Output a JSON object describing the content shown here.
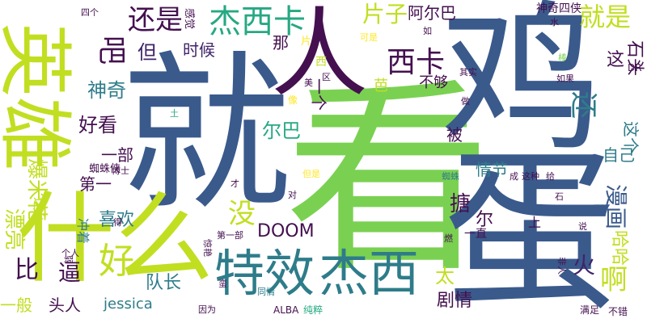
{
  "words": [
    {
      "id": "jiu",
      "text": "就"
    },
    {
      "id": "kan",
      "text": "看"
    },
    {
      "id": "ji",
      "text": "鸡"
    },
    {
      "id": "dan",
      "text": "蛋"
    },
    {
      "id": "yingxiong",
      "text": "英雄"
    },
    {
      "id": "shenme",
      "text": "什么"
    },
    {
      "id": "texiao",
      "text": "特效"
    },
    {
      "id": "jiexi",
      "text": "杰西"
    },
    {
      "id": "ren",
      "text": "人"
    },
    {
      "id": "jiexika",
      "text": "杰西卡"
    },
    {
      "id": "xika",
      "text": "西卡"
    },
    {
      "id": "haishi",
      "text": "还是"
    },
    {
      "id": "pianzi",
      "text": "片子"
    },
    {
      "id": "aerba",
      "text": "阿尔巴"
    },
    {
      "id": "jiushi",
      "text": "就是"
    },
    {
      "id": "ba",
      "text": "吧"
    },
    {
      "id": "shitou",
      "text": "石头"
    },
    {
      "id": "shenqisixia",
      "text": "神奇四侠"
    },
    {
      "id": "sige",
      "text": "四个"
    },
    {
      "id": "gan",
      "text": "感觉"
    },
    {
      "id": "na",
      "text": "那"
    },
    {
      "id": "shihou",
      "text": "时候"
    },
    {
      "id": "dan2",
      "text": "但"
    },
    {
      "id": "shenqi",
      "text": "神奇"
    },
    {
      "id": "yige",
      "text": "一个"
    },
    {
      "id": "buguo",
      "text": "不够"
    },
    {
      "id": "xiyi",
      "text": "西"
    },
    {
      "id": "ru",
      "text": "如"
    },
    {
      "id": "keshi",
      "text": "可是"
    },
    {
      "id": "zhe",
      "text": "这"
    },
    {
      "id": "dr",
      "text": "DR"
    },
    {
      "id": "hai",
      "text": "还"
    },
    {
      "id": "haokan",
      "text": "好看"
    },
    {
      "id": "erba",
      "text": "尔巴"
    },
    {
      "id": "bei",
      "text": "被"
    },
    {
      "id": "zhege",
      "text": "这个"
    },
    {
      "id": "ziji",
      "text": "自己"
    },
    {
      "id": "qingjie",
      "text": "情节"
    },
    {
      "id": "yibu",
      "text": "一部"
    },
    {
      "id": "diyi",
      "text": "第一"
    },
    {
      "id": "baomihua",
      "text": "爆米花"
    },
    {
      "id": "xihuan",
      "text": "喜欢"
    },
    {
      "id": "mei",
      "text": "没"
    },
    {
      "id": "zhizhuxia",
      "text": "蜘蛛侠"
    },
    {
      "id": "manhua",
      "text": "漫画"
    },
    {
      "id": "huo",
      "text": "火"
    },
    {
      "id": "haha",
      "text": "哈哈"
    },
    {
      "id": "a",
      "text": "啊"
    },
    {
      "id": "hao",
      "text": "好"
    },
    {
      "id": "bi",
      "text": "比"
    },
    {
      "id": "bi2",
      "text": "逼"
    },
    {
      "id": "doom",
      "text": "DOOM"
    },
    {
      "id": "duizhang",
      "text": "队长"
    },
    {
      "id": "jessica",
      "text": "jessica"
    },
    {
      "id": "yiban",
      "text": "一般"
    },
    {
      "id": "touren",
      "text": "头人"
    },
    {
      "id": "juqing",
      "text": "剧情"
    },
    {
      "id": "tai",
      "text": "太"
    },
    {
      "id": "er",
      "text": "尔"
    },
    {
      "id": "piaoliang",
      "text": "漂亮"
    },
    {
      "id": "zheme",
      "text": "这么"
    },
    {
      "id": "chongzhe",
      "text": "冲着"
    },
    {
      "id": "yizhi",
      "text": "一直"
    },
    {
      "id": "shang",
      "text": "上"
    },
    {
      "id": "alba",
      "text": "ALBA"
    },
    {
      "id": "chuncui",
      "text": "纯粹"
    },
    {
      "id": "yinwei",
      "text": "因为"
    },
    {
      "id": "manzu",
      "text": "满足"
    },
    {
      "id": "bucuo",
      "text": "不错"
    },
    {
      "id": "tongqing",
      "text": "同情"
    },
    {
      "id": "dui",
      "text": "对"
    },
    {
      "id": "danshi",
      "text": "但是"
    },
    {
      "id": "cai",
      "text": "才"
    },
    {
      "id": "boshi",
      "text": "博士"
    },
    {
      "id": "meiyi",
      "text": "美"
    },
    {
      "id": "qu",
      "text": "区"
    },
    {
      "id": "qishi",
      "text": "其实"
    },
    {
      "id": "ruguo",
      "text": "如果"
    },
    {
      "id": "zuo",
      "text": "做"
    },
    {
      "id": "bang",
      "text": "棒"
    },
    {
      "id": "shui",
      "text": "水"
    },
    {
      "id": "zhizhu",
      "text": "蜘蛛"
    },
    {
      "id": "cheng",
      "text": "成"
    },
    {
      "id": "zhezhong",
      "text": "这种"
    },
    {
      "id": "gei",
      "text": "给"
    },
    {
      "id": "shi",
      "text": "石"
    },
    {
      "id": "shuo",
      "text": "说"
    },
    {
      "id": "feiren",
      "text": "非人"
    },
    {
      "id": "ran",
      "text": "燃"
    },
    {
      "id": "diyibu",
      "text": "第一部"
    },
    {
      "id": "jingyan",
      "text": "惊艳"
    },
    {
      "id": "geren",
      "text": "个人"
    },
    {
      "id": "ruo",
      "text": "弱"
    },
    {
      "id": "de",
      "text": "得"
    },
    {
      "id": "man",
      "text": "蛮"
    },
    {
      "id": "tu",
      "text": "土"
    },
    {
      "id": "xiang",
      "text": "像"
    },
    {
      "id": "pian",
      "text": "片"
    },
    {
      "id": "ba2",
      "text": "芭"
    },
    {
      "id": "tang",
      "text": "搪"
    }
  ]
}
